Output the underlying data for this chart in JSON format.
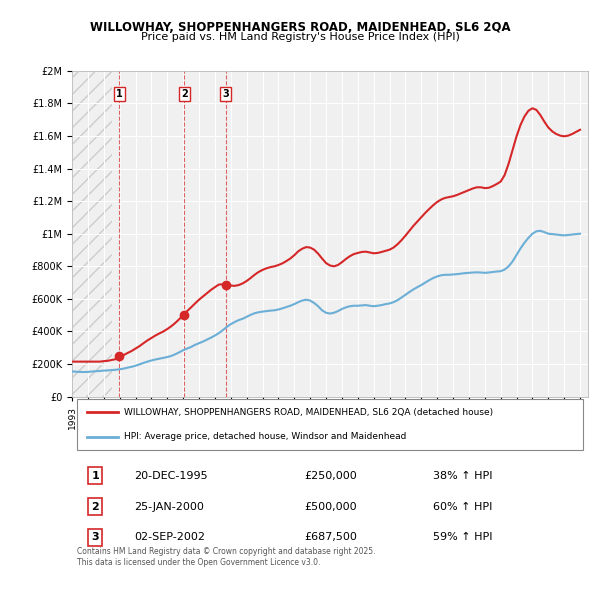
{
  "title1": "WILLOWHAY, SHOPPENHANGERS ROAD, MAIDENHEAD, SL6 2QA",
  "title2": "Price paid vs. HM Land Registry's House Price Index (HPI)",
  "sale_dates": [
    "1995-12-20",
    "2000-01-25",
    "2002-09-02"
  ],
  "sale_prices": [
    250000,
    500000,
    687500
  ],
  "sale_labels": [
    "1",
    "2",
    "3"
  ],
  "sale_pct": [
    "38% ↑ HPI",
    "60% ↑ HPI",
    "59% ↑ HPI"
  ],
  "sale_date_labels": [
    "20-DEC-1995",
    "25-JAN-2000",
    "02-SEP-2002"
  ],
  "legend_line1": "WILLOWHAY, SHOPPENHANGERS ROAD, MAIDENHEAD, SL6 2QA (detached house)",
  "legend_line2": "HPI: Average price, detached house, Windsor and Maidenhead",
  "footer": "Contains HM Land Registry data © Crown copyright and database right 2025.\nThis data is licensed under the Open Government Licence v3.0.",
  "hpi_color": "#6baed6",
  "price_color": "#d62728",
  "vline_color": "#d62728",
  "background_color": "#f0f0f0",
  "ylim": [
    0,
    2000000
  ],
  "xlim_start": 1993.0,
  "xlim_end": 2025.5,
  "hpi_data_x": [
    1993.0,
    1993.25,
    1993.5,
    1993.75,
    1994.0,
    1994.25,
    1994.5,
    1994.75,
    1995.0,
    1995.25,
    1995.5,
    1995.75,
    1996.0,
    1996.25,
    1996.5,
    1996.75,
    1997.0,
    1997.25,
    1997.5,
    1997.75,
    1998.0,
    1998.25,
    1998.5,
    1998.75,
    1999.0,
    1999.25,
    1999.5,
    1999.75,
    2000.0,
    2000.25,
    2000.5,
    2000.75,
    2001.0,
    2001.25,
    2001.5,
    2001.75,
    2002.0,
    2002.25,
    2002.5,
    2002.75,
    2003.0,
    2003.25,
    2003.5,
    2003.75,
    2004.0,
    2004.25,
    2004.5,
    2004.75,
    2005.0,
    2005.25,
    2005.5,
    2005.75,
    2006.0,
    2006.25,
    2006.5,
    2006.75,
    2007.0,
    2007.25,
    2007.5,
    2007.75,
    2008.0,
    2008.25,
    2008.5,
    2008.75,
    2009.0,
    2009.25,
    2009.5,
    2009.75,
    2010.0,
    2010.25,
    2010.5,
    2010.75,
    2011.0,
    2011.25,
    2011.5,
    2011.75,
    2012.0,
    2012.25,
    2012.5,
    2012.75,
    2013.0,
    2013.25,
    2013.5,
    2013.75,
    2014.0,
    2014.25,
    2014.5,
    2014.75,
    2015.0,
    2015.25,
    2015.5,
    2015.75,
    2016.0,
    2016.25,
    2016.5,
    2016.75,
    2017.0,
    2017.25,
    2017.5,
    2017.75,
    2018.0,
    2018.25,
    2018.5,
    2018.75,
    2019.0,
    2019.25,
    2019.5,
    2019.75,
    2020.0,
    2020.25,
    2020.5,
    2020.75,
    2021.0,
    2021.25,
    2021.5,
    2021.75,
    2022.0,
    2022.25,
    2022.5,
    2022.75,
    2023.0,
    2023.25,
    2023.5,
    2023.75,
    2024.0,
    2024.25,
    2024.5,
    2024.75,
    2025.0
  ],
  "hpi_data_y": [
    155000,
    153000,
    152000,
    151000,
    152000,
    154000,
    156000,
    158000,
    160000,
    161000,
    163000,
    165000,
    168000,
    172000,
    178000,
    183000,
    190000,
    198000,
    207000,
    215000,
    222000,
    228000,
    233000,
    238000,
    243000,
    250000,
    260000,
    272000,
    285000,
    295000,
    305000,
    318000,
    328000,
    338000,
    350000,
    362000,
    375000,
    390000,
    408000,
    428000,
    445000,
    458000,
    470000,
    478000,
    490000,
    502000,
    512000,
    518000,
    522000,
    525000,
    528000,
    530000,
    535000,
    542000,
    550000,
    558000,
    568000,
    580000,
    590000,
    595000,
    590000,
    575000,
    555000,
    530000,
    515000,
    510000,
    515000,
    525000,
    538000,
    548000,
    555000,
    558000,
    558000,
    560000,
    562000,
    558000,
    555000,
    558000,
    562000,
    568000,
    572000,
    580000,
    592000,
    608000,
    625000,
    642000,
    658000,
    672000,
    685000,
    700000,
    715000,
    728000,
    738000,
    745000,
    748000,
    748000,
    750000,
    752000,
    755000,
    758000,
    760000,
    762000,
    763000,
    762000,
    760000,
    762000,
    765000,
    768000,
    770000,
    780000,
    800000,
    830000,
    870000,
    910000,
    945000,
    975000,
    1000000,
    1015000,
    1018000,
    1010000,
    1000000,
    998000,
    995000,
    992000,
    990000,
    992000,
    995000,
    998000,
    1000000
  ],
  "price_data_x": [
    1993.0,
    1993.25,
    1993.5,
    1993.75,
    1994.0,
    1994.25,
    1994.5,
    1994.75,
    1995.0,
    1995.25,
    1995.5,
    1995.75,
    1996.0,
    1996.25,
    1996.5,
    1996.75,
    1997.0,
    1997.25,
    1997.5,
    1997.75,
    1998.0,
    1998.25,
    1998.5,
    1998.75,
    1999.0,
    1999.25,
    1999.5,
    1999.75,
    2000.0,
    2000.25,
    2000.5,
    2000.75,
    2001.0,
    2001.25,
    2001.5,
    2001.75,
    2002.0,
    2002.25,
    2002.5,
    2002.75,
    2003.0,
    2003.25,
    2003.5,
    2003.75,
    2004.0,
    2004.25,
    2004.5,
    2004.75,
    2005.0,
    2005.25,
    2005.5,
    2005.75,
    2006.0,
    2006.25,
    2006.5,
    2006.75,
    2007.0,
    2007.25,
    2007.5,
    2007.75,
    2008.0,
    2008.25,
    2008.5,
    2008.75,
    2009.0,
    2009.25,
    2009.5,
    2009.75,
    2010.0,
    2010.25,
    2010.5,
    2010.75,
    2011.0,
    2011.25,
    2011.5,
    2011.75,
    2012.0,
    2012.25,
    2012.5,
    2012.75,
    2013.0,
    2013.25,
    2013.5,
    2013.75,
    2014.0,
    2014.25,
    2014.5,
    2014.75,
    2015.0,
    2015.25,
    2015.5,
    2015.75,
    2016.0,
    2016.25,
    2016.5,
    2016.75,
    2017.0,
    2017.25,
    2017.5,
    2017.75,
    2018.0,
    2018.25,
    2018.5,
    2018.75,
    2019.0,
    2019.25,
    2019.5,
    2019.75,
    2020.0,
    2020.25,
    2020.5,
    2020.75,
    2021.0,
    2021.25,
    2021.5,
    2021.75,
    2022.0,
    2022.25,
    2022.5,
    2022.75,
    2023.0,
    2023.25,
    2023.5,
    2023.75,
    2024.0,
    2024.25,
    2024.5,
    2024.75,
    2025.0
  ],
  "price_data_y": [
    215000,
    215000,
    215000,
    215000,
    215000,
    215000,
    215000,
    215000,
    218000,
    220000,
    225000,
    230000,
    240000,
    255000,
    268000,
    280000,
    295000,
    310000,
    328000,
    345000,
    360000,
    375000,
    388000,
    400000,
    415000,
    432000,
    452000,
    475000,
    500000,
    525000,
    548000,
    572000,
    595000,
    615000,
    635000,
    655000,
    672000,
    688000,
    690000,
    688000,
    682000,
    680000,
    685000,
    695000,
    710000,
    728000,
    748000,
    765000,
    778000,
    788000,
    795000,
    800000,
    808000,
    818000,
    832000,
    848000,
    868000,
    892000,
    908000,
    918000,
    915000,
    902000,
    878000,
    848000,
    820000,
    805000,
    800000,
    808000,
    825000,
    845000,
    862000,
    875000,
    882000,
    888000,
    890000,
    885000,
    880000,
    882000,
    888000,
    895000,
    902000,
    915000,
    935000,
    960000,
    988000,
    1018000,
    1048000,
    1075000,
    1102000,
    1128000,
    1152000,
    1175000,
    1195000,
    1210000,
    1220000,
    1225000,
    1230000,
    1238000,
    1248000,
    1258000,
    1268000,
    1278000,
    1285000,
    1285000,
    1280000,
    1282000,
    1292000,
    1305000,
    1320000,
    1360000,
    1430000,
    1515000,
    1598000,
    1668000,
    1720000,
    1755000,
    1770000,
    1760000,
    1728000,
    1688000,
    1652000,
    1628000,
    1612000,
    1602000,
    1598000,
    1602000,
    1612000,
    1625000,
    1638000
  ]
}
